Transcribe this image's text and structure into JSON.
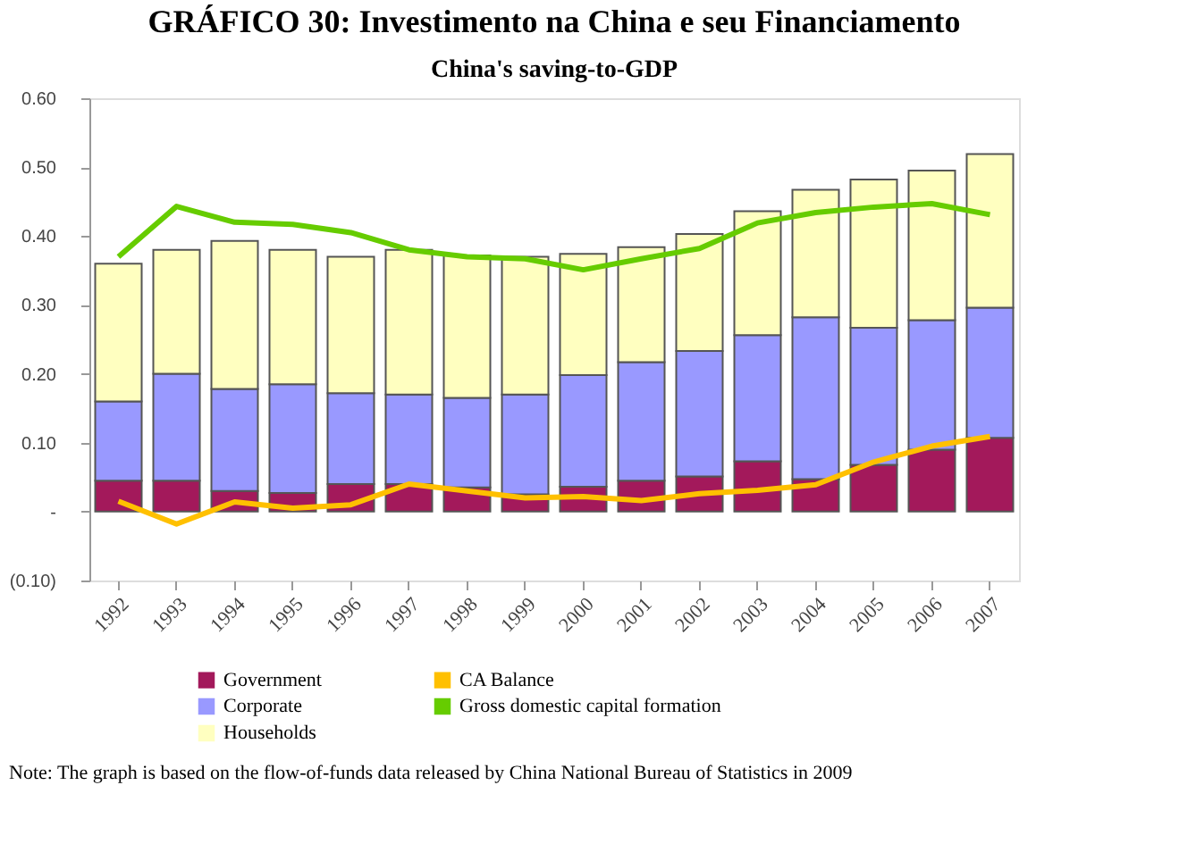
{
  "chart_data": {
    "type": "bar",
    "stacked": true,
    "title": "GRÁFICO 30: Investimento na China e seu Financiamento",
    "subtitle": "China's saving-to-GDP",
    "categories": [
      "1992",
      "1993",
      "1994",
      "1995",
      "1996",
      "1997",
      "1998",
      "1999",
      "2000",
      "2001",
      "2002",
      "2003",
      "2004",
      "2005",
      "2006",
      "2007"
    ],
    "series": [
      {
        "name": "Government",
        "color": "#a3195b",
        "values": [
          0.045,
          0.045,
          0.03,
          0.027,
          0.04,
          0.04,
          0.035,
          0.025,
          0.036,
          0.045,
          0.051,
          0.073,
          0.047,
          0.068,
          0.09,
          0.107
        ]
      },
      {
        "name": "Corporate",
        "color": "#9999ff",
        "values": [
          0.115,
          0.155,
          0.148,
          0.158,
          0.132,
          0.13,
          0.13,
          0.145,
          0.162,
          0.172,
          0.182,
          0.183,
          0.235,
          0.199,
          0.188,
          0.189
        ]
      },
      {
        "name": "Households",
        "color": "#ffffc0",
        "values": [
          0.2,
          0.18,
          0.215,
          0.195,
          0.198,
          0.21,
          0.207,
          0.2,
          0.176,
          0.167,
          0.17,
          0.18,
          0.185,
          0.215,
          0.217,
          0.223
        ]
      },
      {
        "name": "CA Balance",
        "type": "line",
        "color": "#ffc000",
        "values": [
          0.015,
          -0.018,
          0.014,
          0.005,
          0.01,
          0.04,
          0.03,
          0.02,
          0.022,
          0.016,
          0.026,
          0.031,
          0.039,
          0.072,
          0.095,
          0.109
        ]
      },
      {
        "name": "Gross domestic capital formation",
        "type": "line",
        "color": "#66cc00",
        "values": [
          0.37,
          0.443,
          0.42,
          0.417,
          0.405,
          0.38,
          0.37,
          0.367,
          0.351,
          0.367,
          0.382,
          0.419,
          0.434,
          0.442,
          0.447,
          0.431
        ]
      }
    ],
    "ylim": [
      -0.1,
      0.6
    ],
    "yticks": [
      {
        "value": -0.1,
        "label": "(0.10)"
      },
      {
        "value": 0,
        "label": "-"
      },
      {
        "value": 0.1,
        "label": "0.10"
      },
      {
        "value": 0.2,
        "label": "0.20"
      },
      {
        "value": 0.3,
        "label": "0.30"
      },
      {
        "value": 0.4,
        "label": "0.40"
      },
      {
        "value": 0.5,
        "label": "0.50"
      },
      {
        "value": 0.6,
        "label": "0.60"
      }
    ],
    "grid": false,
    "legend": "bottom",
    "annotations": [
      "Note: The graph is based on the flow-of-funds data released by China National Bureau of Statistics in 2009"
    ]
  }
}
